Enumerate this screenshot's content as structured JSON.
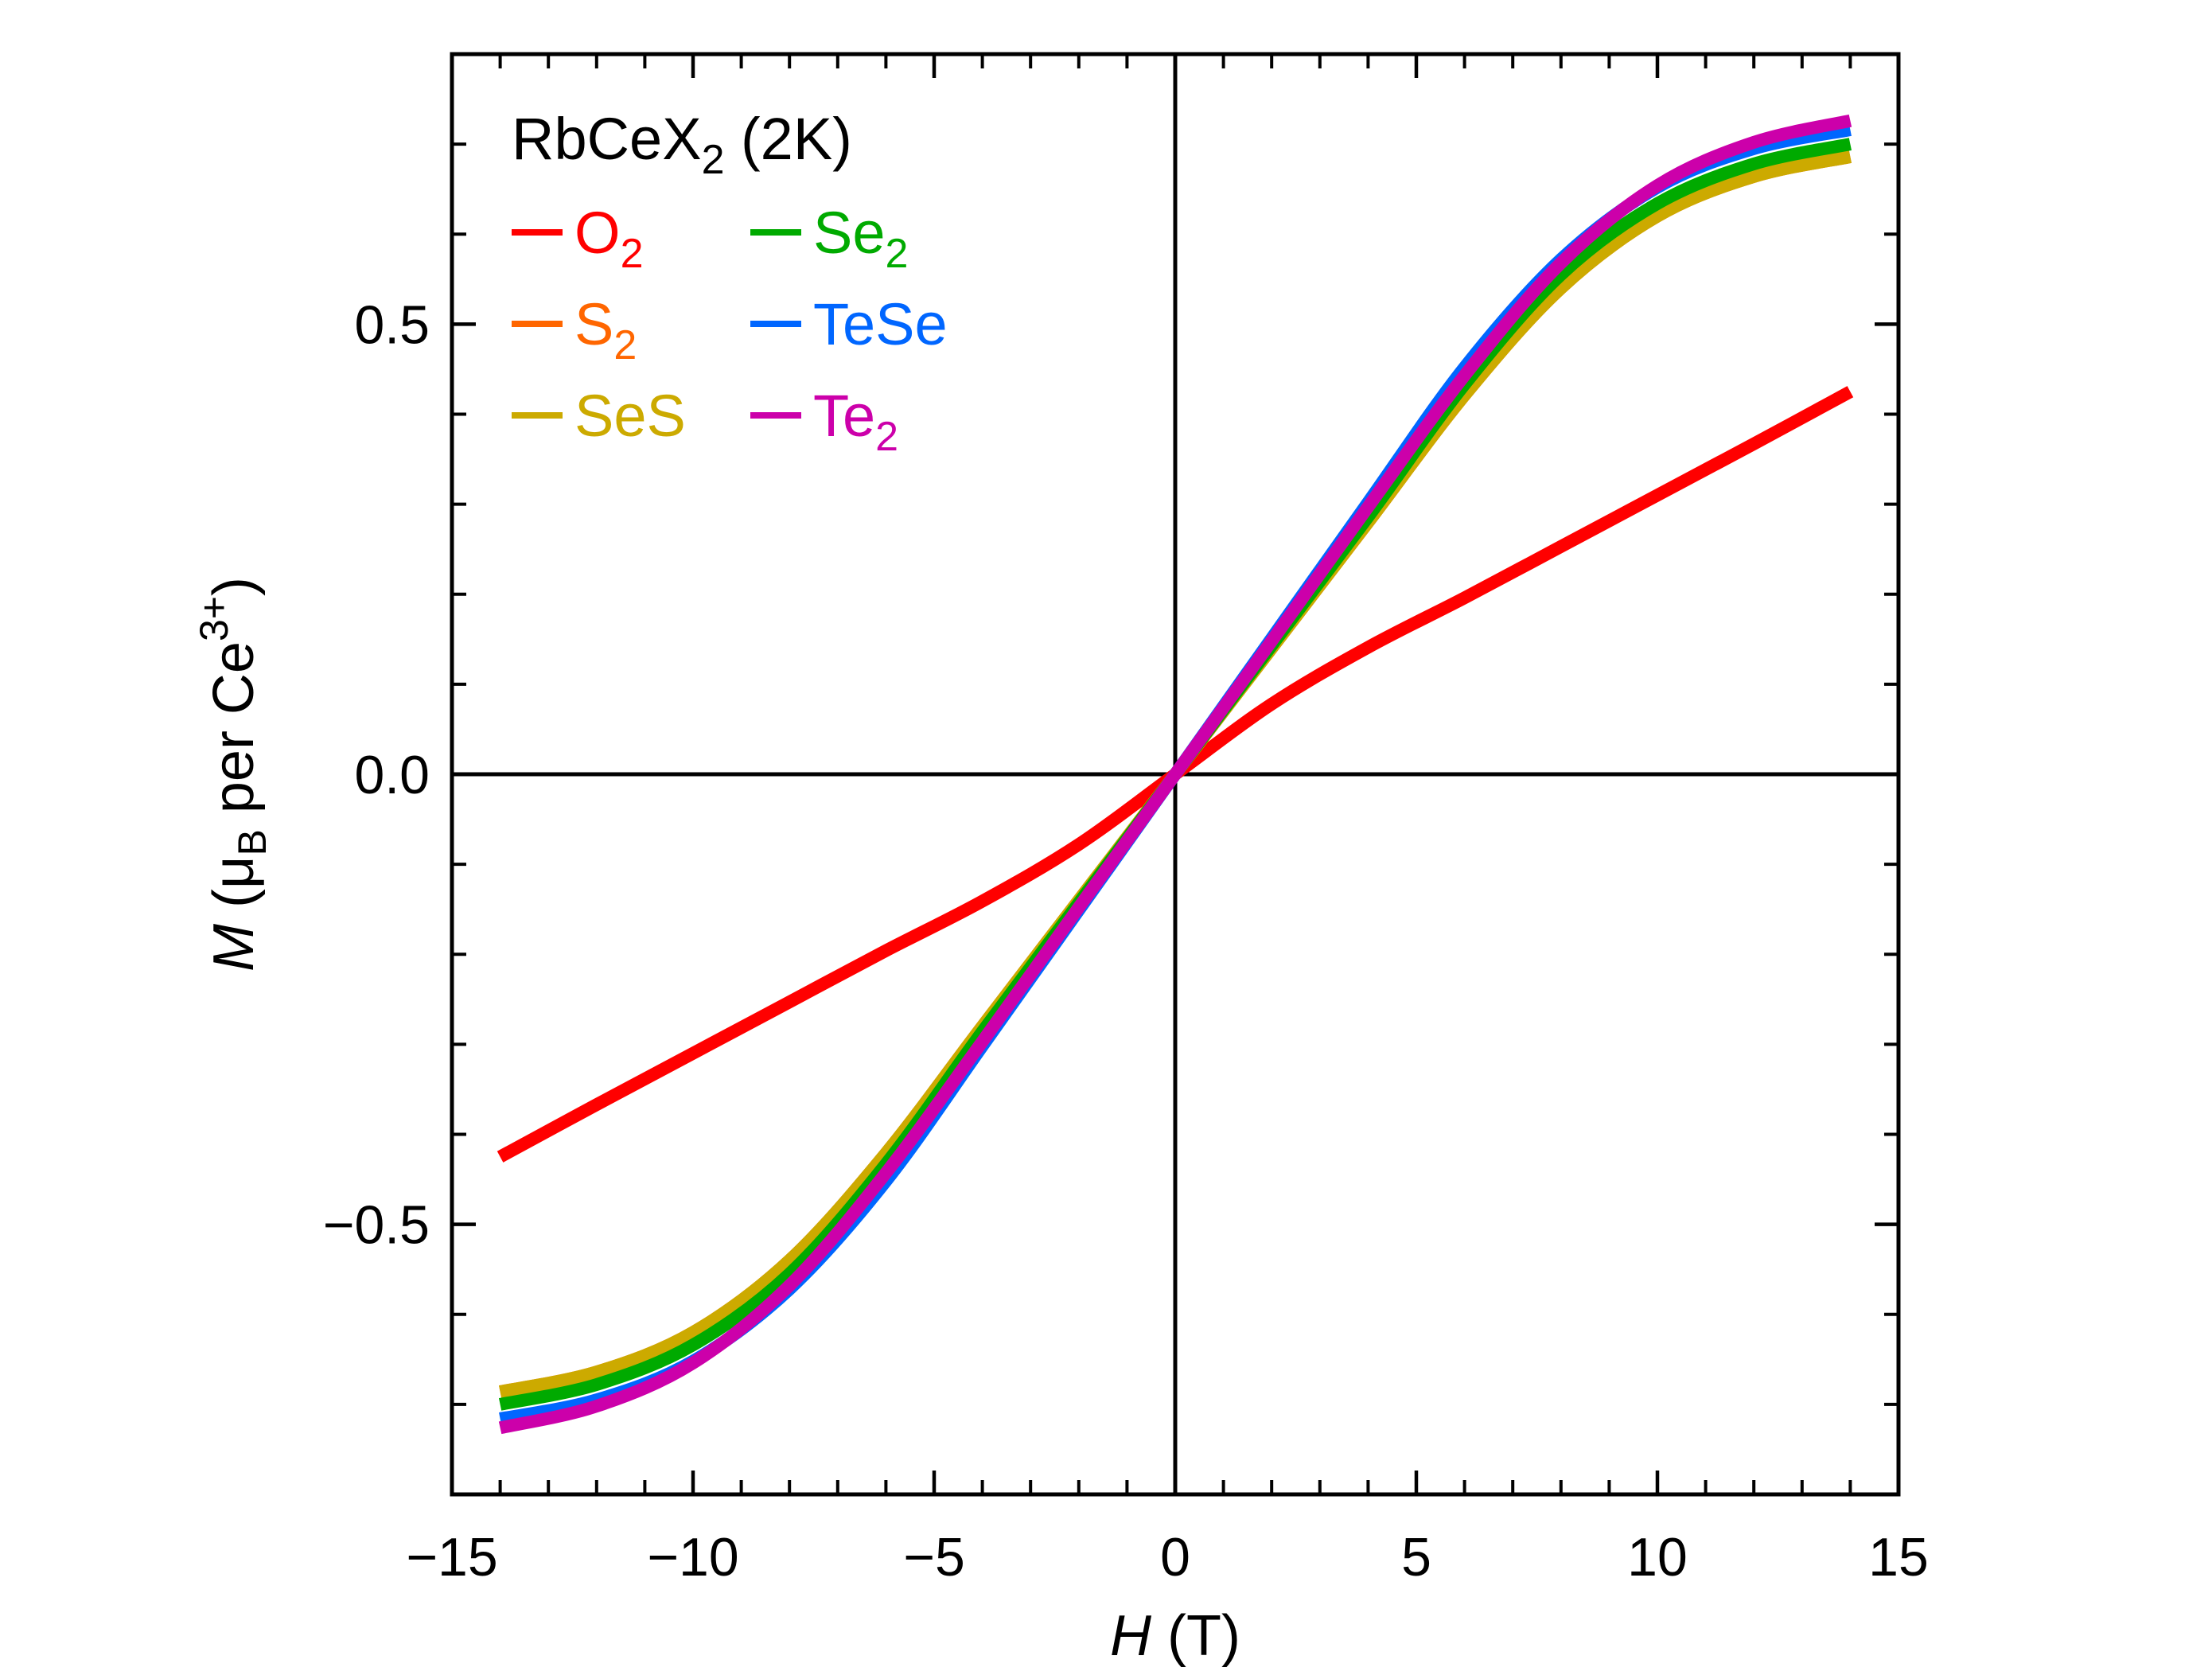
{
  "chart_data": {
    "type": "line",
    "title": "RbCeX₂ (2K)",
    "title_parts": {
      "main": "RbCeX",
      "sub": "2",
      "suffix": " (2K)"
    },
    "xlabel": {
      "italic": "H",
      "rest": " (T)"
    },
    "ylabel": {
      "italic": "M",
      "open": " (μ",
      "sub": "B",
      "mid": " per Ce",
      "sup": "3+",
      "close": ")"
    },
    "xlim": [
      -15,
      15
    ],
    "ylim": [
      -0.8,
      0.8
    ],
    "x_ticks": [
      -15,
      -10,
      -5,
      0,
      5,
      10,
      15
    ],
    "x_tick_labels": [
      "−15",
      "−10",
      "−5",
      "0",
      "5",
      "10",
      "15"
    ],
    "y_ticks": [
      -0.5,
      0.0,
      0.5
    ],
    "y_tick_labels": [
      "−0.5",
      "0.0",
      "0.5"
    ],
    "x_minor_step": 1,
    "y_minor_step": 0.1,
    "zero_lines": true,
    "legend_position": "top-left",
    "series": [
      {
        "key": "O2",
        "label": "O",
        "label_sub": "2",
        "color": "#ff0000",
        "x": [
          -14,
          -12,
          -10,
          -8,
          -6,
          -4,
          -2,
          0,
          2,
          4,
          6,
          8,
          10,
          12,
          14
        ],
        "y": [
          -0.425,
          -0.367,
          -0.31,
          -0.253,
          -0.196,
          -0.141,
          -0.078,
          0,
          0.078,
          0.141,
          0.196,
          0.253,
          0.31,
          0.367,
          0.425
        ]
      },
      {
        "key": "S2",
        "label": "S",
        "label_sub": "2",
        "color": "#ff6600",
        "x": [
          -14,
          -12,
          -10,
          -8,
          -6,
          -4,
          -2,
          0,
          2,
          4,
          6,
          8,
          10,
          12,
          14
        ],
        "y": [
          -0.686,
          -0.664,
          -0.62,
          -0.54,
          -0.421,
          -0.28,
          -0.14,
          0,
          0.14,
          0.28,
          0.421,
          0.54,
          0.62,
          0.664,
          0.686
        ]
      },
      {
        "key": "SeS",
        "label": "SeS",
        "label_sub": "",
        "color": "#ccaa00",
        "x": [
          -14,
          -12,
          -10,
          -8,
          -6,
          -4,
          -2,
          0,
          2,
          4,
          6,
          8,
          10,
          12,
          14
        ],
        "y": [
          -0.686,
          -0.664,
          -0.62,
          -0.54,
          -0.421,
          -0.28,
          -0.14,
          0,
          0.14,
          0.28,
          0.421,
          0.54,
          0.62,
          0.664,
          0.686
        ]
      },
      {
        "key": "Se2",
        "label": "Se",
        "label_sub": "2",
        "color": "#00aa00",
        "x": [
          -14,
          -12,
          -10,
          -8,
          -6,
          -4,
          -2,
          0,
          2,
          4,
          6,
          8,
          10,
          12,
          14
        ],
        "y": [
          -0.7,
          -0.678,
          -0.634,
          -0.555,
          -0.433,
          -0.286,
          -0.143,
          0,
          0.143,
          0.286,
          0.433,
          0.555,
          0.634,
          0.678,
          0.7
        ]
      },
      {
        "key": "TeSe",
        "label": "TeSe",
        "label_sub": "",
        "color": "#0066ff",
        "x": [
          -14,
          -12,
          -10,
          -8,
          -6,
          -4,
          -2,
          0,
          2,
          4,
          6,
          8,
          10,
          12,
          14
        ],
        "y": [
          -0.716,
          -0.695,
          -0.652,
          -0.572,
          -0.452,
          -0.302,
          -0.151,
          0,
          0.151,
          0.302,
          0.452,
          0.572,
          0.652,
          0.695,
          0.716
        ]
      },
      {
        "key": "Te2",
        "label": "Te",
        "label_sub": "2",
        "color": "#cc00aa",
        "x": [
          -14,
          -12,
          -10,
          -8,
          -6,
          -4,
          -2,
          0,
          2,
          4,
          6,
          8,
          10,
          12,
          14
        ],
        "y": [
          -0.726,
          -0.702,
          -0.654,
          -0.568,
          -0.443,
          -0.297,
          -0.148,
          0,
          0.148,
          0.297,
          0.443,
          0.568,
          0.654,
          0.702,
          0.726
        ]
      }
    ]
  }
}
